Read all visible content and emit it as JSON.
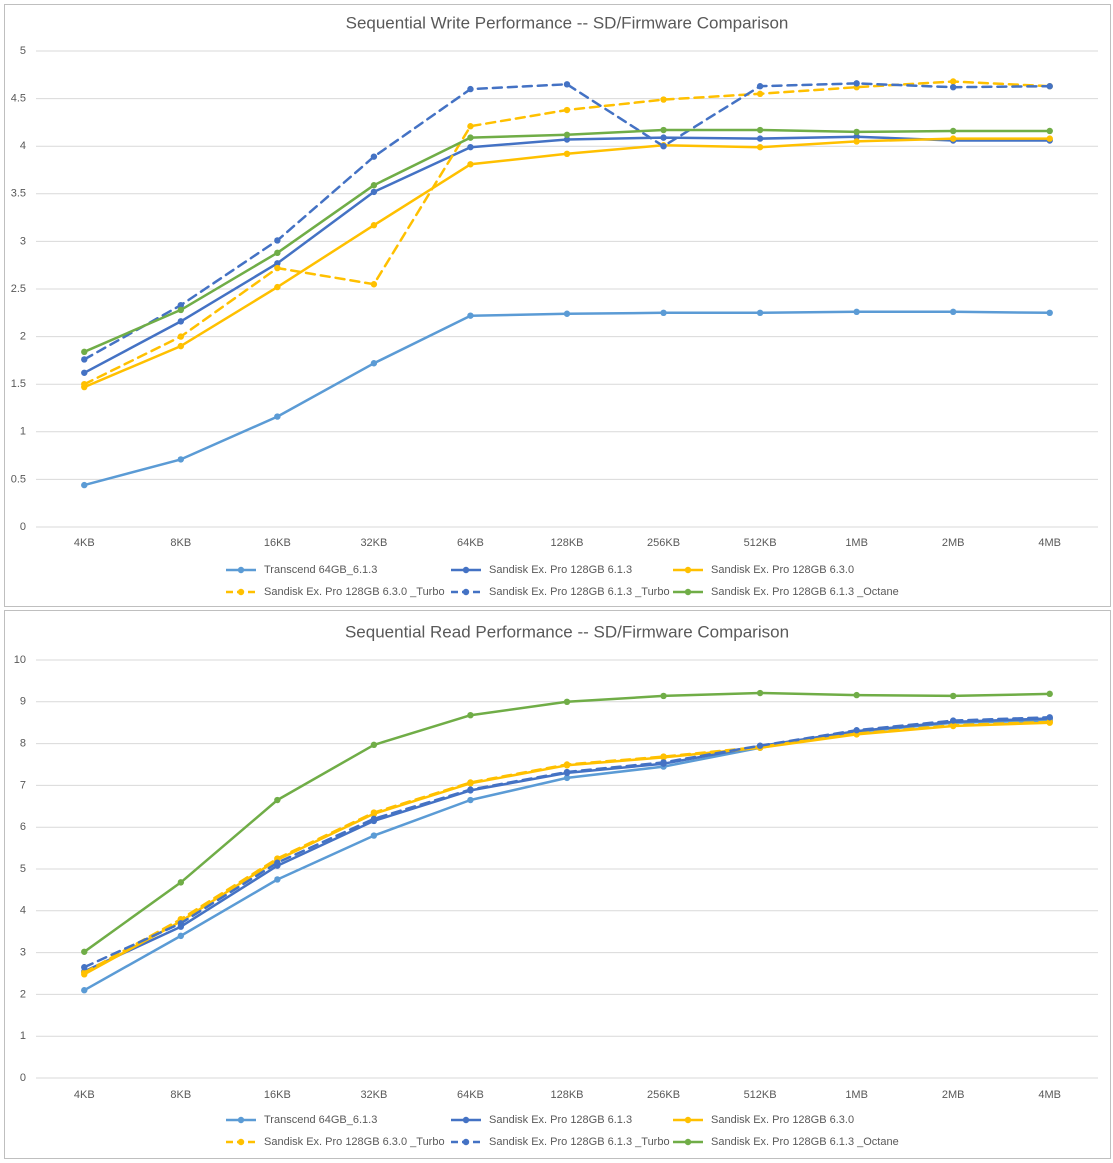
{
  "chart_data": [
    {
      "type": "line",
      "title": "Sequential Write Performance -- SD/Firmware Comparison",
      "categories": [
        "4KB",
        "8KB",
        "16KB",
        "32KB",
        "64KB",
        "128KB",
        "256KB",
        "512KB",
        "1MB",
        "2MB",
        "4MB"
      ],
      "ylim": [
        0,
        5
      ],
      "yticks": [
        "0",
        "0.5",
        "1",
        "1.5",
        "2",
        "2.5",
        "3",
        "3.5",
        "4",
        "4.5",
        "5"
      ],
      "ytick_values": [
        0,
        0.5,
        1,
        1.5,
        2,
        2.5,
        3,
        3.5,
        4,
        4.5,
        5
      ],
      "grid": true,
      "legend_position": "bottom",
      "series": [
        {
          "name": "Transcend 64GB_6.1.3",
          "color": "#5b9bd5",
          "dash": false,
          "values": [
            0.44,
            0.71,
            1.16,
            1.72,
            2.22,
            2.24,
            2.25,
            2.25,
            2.26,
            2.26,
            2.25
          ]
        },
        {
          "name": "Sandisk Ex. Pro  128GB 6.1.3",
          "color": "#4472c4",
          "dash": false,
          "values": [
            1.62,
            2.16,
            2.77,
            3.52,
            3.99,
            4.07,
            4.09,
            4.08,
            4.1,
            4.06,
            4.06
          ]
        },
        {
          "name": "Sandisk Ex. Pro 128GB 6.3.0",
          "color": "#ffc000",
          "dash": false,
          "values": [
            1.47,
            1.9,
            2.52,
            3.17,
            3.81,
            3.92,
            4.01,
            3.99,
            4.05,
            4.08,
            4.08
          ]
        },
        {
          "name": "Sandisk Ex. Pro 128GB 6.3.0 _Turbo",
          "color": "#ffc000",
          "dash": true,
          "values": [
            1.5,
            2.0,
            2.72,
            2.55,
            4.21,
            4.38,
            4.49,
            4.55,
            4.62,
            4.68,
            4.63
          ]
        },
        {
          "name": "Sandisk Ex. Pro 128GB 6.1.3 _Turbo",
          "color": "#4472c4",
          "dash": true,
          "values": [
            1.76,
            2.33,
            3.01,
            3.89,
            4.6,
            4.65,
            4.0,
            4.63,
            4.66,
            4.62,
            4.63
          ]
        },
        {
          "name": "Sandisk Ex. Pro 128GB 6.1.3 _Octane",
          "color": "#70ad47",
          "dash": false,
          "values": [
            1.84,
            2.28,
            2.88,
            3.59,
            4.09,
            4.12,
            4.17,
            4.17,
            4.15,
            4.16,
            4.16
          ]
        }
      ]
    },
    {
      "type": "line",
      "title": "Sequential Read Performance -- SD/Firmware Comparison",
      "categories": [
        "4KB",
        "8KB",
        "16KB",
        "32KB",
        "64KB",
        "128KB",
        "256KB",
        "512KB",
        "1MB",
        "2MB",
        "4MB"
      ],
      "ylim": [
        0,
        10
      ],
      "yticks": [
        "0",
        "1",
        "2",
        "3",
        "4",
        "5",
        "6",
        "7",
        "8",
        "9",
        "10"
      ],
      "ytick_values": [
        0,
        1,
        2,
        3,
        4,
        5,
        6,
        7,
        8,
        9,
        10
      ],
      "grid": true,
      "legend_position": "bottom",
      "series": [
        {
          "name": "Transcend 64GB_6.1.3",
          "color": "#5b9bd5",
          "dash": false,
          "values": [
            2.1,
            3.4,
            4.75,
            5.8,
            6.65,
            7.18,
            7.45,
            7.9,
            8.28,
            8.5,
            8.55
          ]
        },
        {
          "name": "Sandisk Ex. Pro  128GB 6.1.3",
          "color": "#4472c4",
          "dash": false,
          "values": [
            2.55,
            3.62,
            5.08,
            6.15,
            6.88,
            7.3,
            7.52,
            7.94,
            8.3,
            8.52,
            8.6
          ]
        },
        {
          "name": "Sandisk Ex. Pro 128GB 6.3.0",
          "color": "#ffc000",
          "dash": false,
          "values": [
            2.48,
            3.75,
            5.22,
            6.32,
            7.05,
            7.48,
            7.67,
            7.9,
            8.22,
            8.42,
            8.5
          ]
        },
        {
          "name": "Sandisk Ex. Pro 128GB 6.3.0 _Turbo",
          "color": "#ffc000",
          "dash": true,
          "values": [
            2.52,
            3.8,
            5.25,
            6.35,
            7.07,
            7.5,
            7.69,
            7.92,
            8.24,
            8.44,
            8.52
          ]
        },
        {
          "name": "Sandisk Ex. Pro 128GB 6.1.3 _Turbo",
          "color": "#4472c4",
          "dash": true,
          "values": [
            2.65,
            3.7,
            5.15,
            6.2,
            6.9,
            7.32,
            7.55,
            7.95,
            8.32,
            8.55,
            8.63
          ]
        },
        {
          "name": "Sandisk Ex. Pro 128GB 6.1.3 _Octane",
          "color": "#70ad47",
          "dash": false,
          "values": [
            3.02,
            4.68,
            6.65,
            7.97,
            8.68,
            9.0,
            9.14,
            9.21,
            9.16,
            9.14,
            9.19
          ]
        }
      ]
    }
  ]
}
